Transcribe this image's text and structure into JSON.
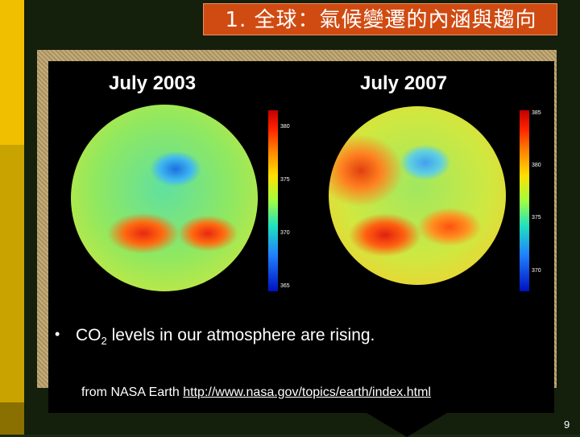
{
  "slide": {
    "title": "1. 全球：氣候變遷的內涵與趨向",
    "page_number": "9"
  },
  "figure": {
    "left_map": {
      "title": "July 2003",
      "colorbar_ticks": [
        "380",
        "375",
        "370",
        "365"
      ]
    },
    "right_map": {
      "title": "July 2007",
      "colorbar_ticks": [
        "385",
        "380",
        "375",
        "370"
      ]
    }
  },
  "content": {
    "bullet_prefix": "CO",
    "bullet_sub": "2",
    "bullet_suffix": " levels in our atmosphere are rising.",
    "source_prefix": "from NASA Earth ",
    "source_link": "http://www.nasa.gov/topics/earth/index.html"
  },
  "colors": {
    "title_background": "#d04b12",
    "accent_yellow": "#f0c000"
  }
}
